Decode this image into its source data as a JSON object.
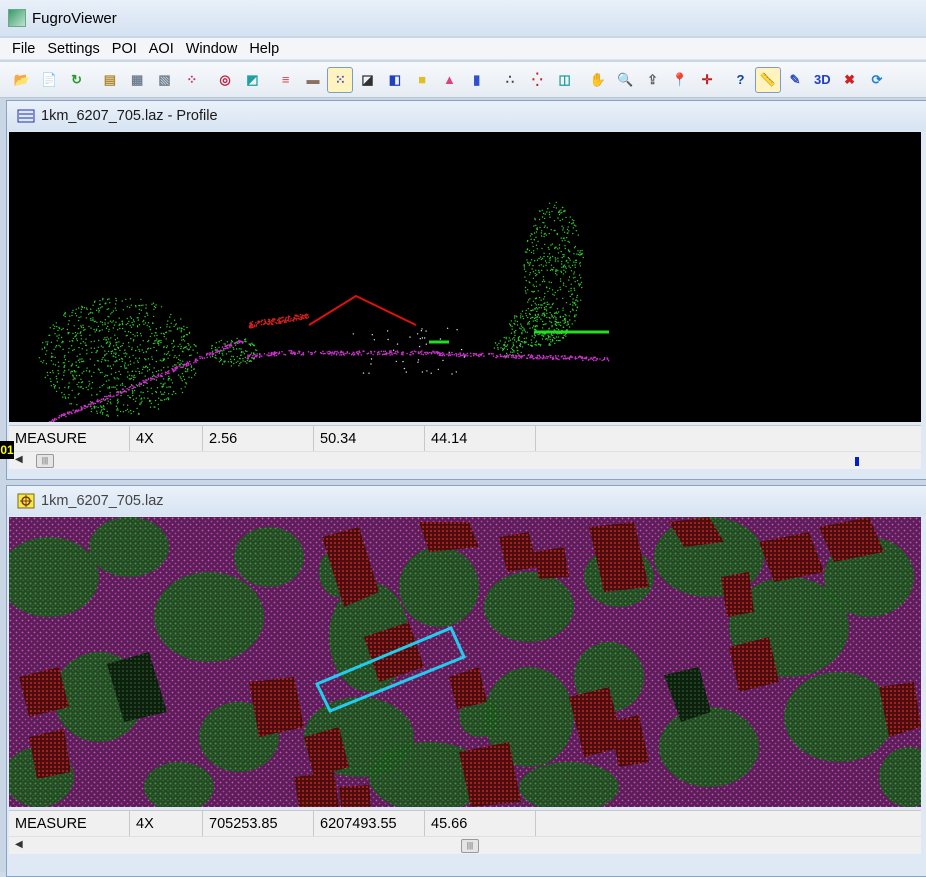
{
  "app": {
    "title": "FugroViewer"
  },
  "menu": [
    "File",
    "Settings",
    "POI",
    "AOI",
    "Window",
    "Help"
  ],
  "toolbar": {
    "buttons": [
      {
        "name": "open-folder-icon",
        "glyph": "📂"
      },
      {
        "name": "add-file-icon",
        "glyph": "📄"
      },
      {
        "name": "reload-arrow-icon",
        "glyph": "↻"
      },
      {
        "name": "add-layer-icon",
        "glyph": "▤"
      },
      {
        "name": "layers-icon",
        "glyph": "▦"
      },
      {
        "name": "layer-settings-icon",
        "glyph": "▧"
      },
      {
        "name": "point-grid-icon",
        "glyph": "⁘"
      },
      {
        "name": "contour-icon",
        "glyph": "◎"
      },
      {
        "name": "tin-surface-icon",
        "glyph": "◩"
      },
      {
        "name": "color-by-elevation-icon",
        "glyph": "≡"
      },
      {
        "name": "color-by-intensity-icon",
        "glyph": "▬"
      },
      {
        "name": "color-by-class-icon",
        "glyph": "⁙"
      },
      {
        "name": "color-by-return-icon",
        "glyph": "◪"
      },
      {
        "name": "color-ramp-icon",
        "glyph": "◧"
      },
      {
        "name": "color-rgb-icon",
        "glyph": "■"
      },
      {
        "name": "color-triangle-icon",
        "glyph": "▲"
      },
      {
        "name": "color-bars-icon",
        "glyph": "▮"
      },
      {
        "name": "sparse-points-icon",
        "glyph": "∴"
      },
      {
        "name": "dense-points-icon",
        "glyph": "⁛"
      },
      {
        "name": "fit-view-icon",
        "glyph": "◫"
      },
      {
        "name": "pan-hand-icon",
        "glyph": "✋"
      },
      {
        "name": "zoom-icon",
        "glyph": "🔍"
      },
      {
        "name": "export-icon",
        "glyph": "⇪"
      },
      {
        "name": "poi-pin-icon",
        "glyph": "📍"
      },
      {
        "name": "crosshair-icon",
        "glyph": "✛"
      },
      {
        "name": "query-icon",
        "glyph": "?"
      },
      {
        "name": "measure-ruler-icon",
        "glyph": "📏"
      },
      {
        "name": "pencil-icon",
        "glyph": "✎"
      },
      {
        "name": "view-3d-icon",
        "glyph": "3D"
      },
      {
        "name": "close-red-icon",
        "glyph": "✖"
      },
      {
        "name": "refresh-icon",
        "glyph": "⟳"
      }
    ]
  },
  "profile_window": {
    "title": "1km_6207_705.laz - Profile",
    "status": {
      "mode": "MEASURE",
      "zoom": "4X",
      "x": "2.56",
      "y": "50.34",
      "z": "44.14"
    },
    "side_marker": "01"
  },
  "plan_window": {
    "title": "1km_6207_705.laz",
    "status": {
      "mode": "MEASURE",
      "zoom": "4X",
      "x": "705253.85",
      "y": "6207493.55",
      "z": "45.66"
    }
  },
  "colors": {
    "ground": "#cc33cc",
    "vegetation": "#33cc33",
    "building": "#cc2222",
    "selection": "#22ccee"
  }
}
